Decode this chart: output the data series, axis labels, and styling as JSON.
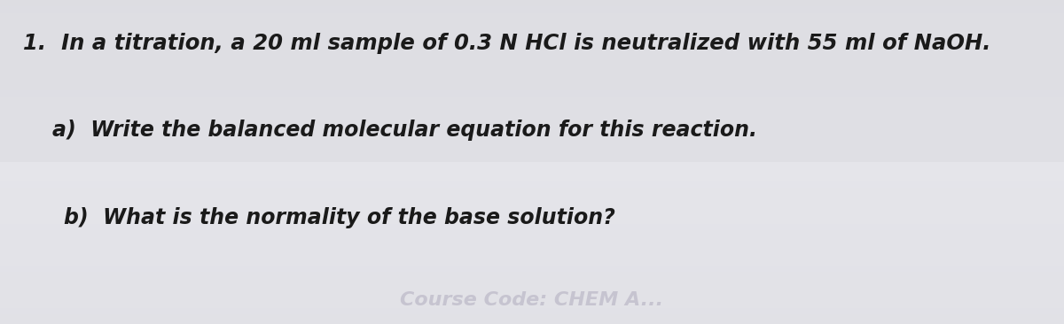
{
  "background_color_top": "#d8d8dc",
  "background_color_mid": "#e0e0e4",
  "background_color_bottom": "#d4d4d8",
  "text_color": "#1a1a1a",
  "watermark_color": "#b8b4c4",
  "line1_text": "1.  In a titration, a 20 ml sample of 0.3 N HCl is neutralized with 55 ml of NaOH.",
  "line2_text": "    a)  Write the balanced molecular equation for this reaction.",
  "line3_text": "b)  What is the normality of the base solution?",
  "watermark_text": "Course Code: CHEM A...",
  "figwidth": 12.0,
  "figheight": 3.66,
  "dpi": 100,
  "font_size_main": 17.5,
  "font_size_sub": 17.0,
  "font_size_watermark": 16
}
